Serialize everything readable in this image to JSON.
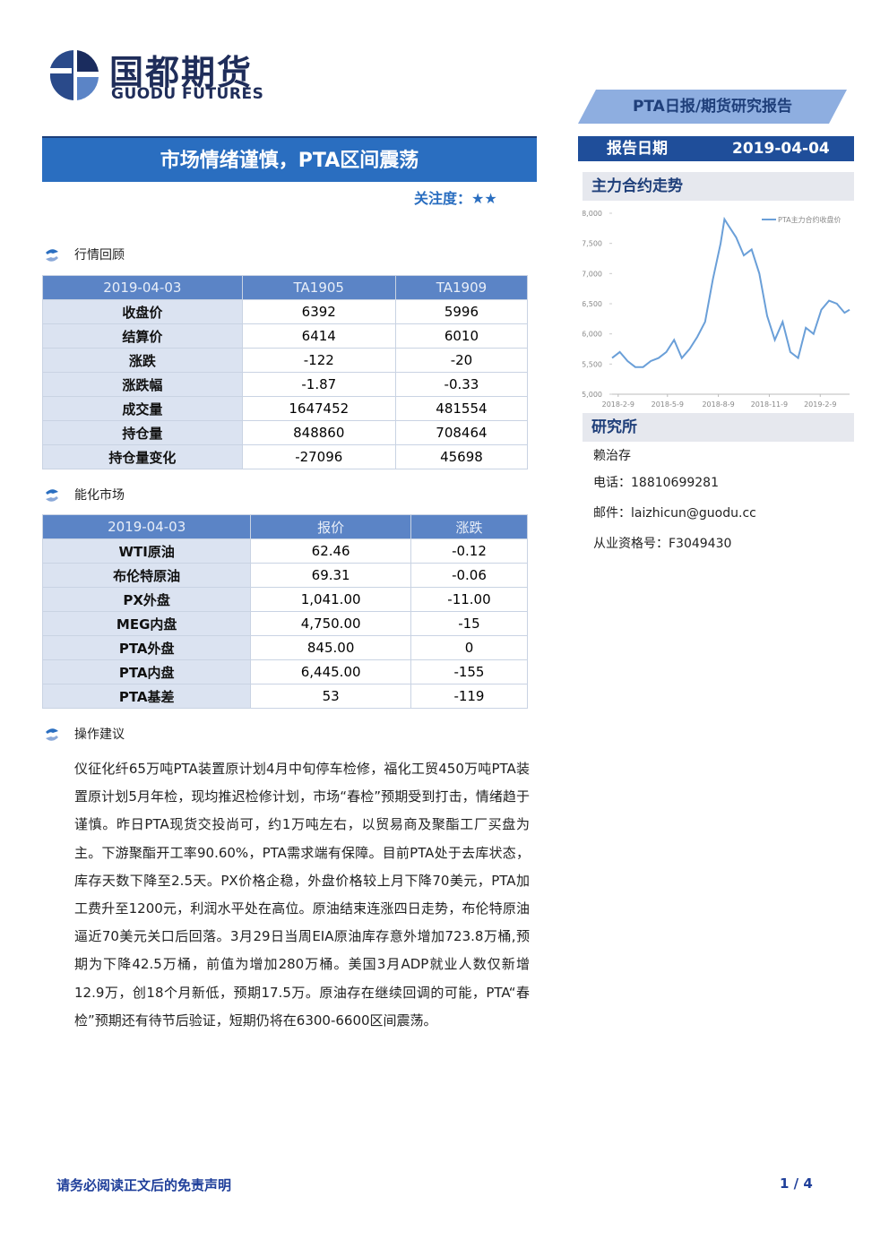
{
  "header": {
    "logo_cn": "国都期货",
    "logo_en": "GUODU FUTURES",
    "report_type": "PTA日报/期货研究报告",
    "date_label": "报告日期",
    "date": "2019-04-04"
  },
  "title": "市场情绪谨慎，PTA区间震荡",
  "attention": {
    "label": "关注度：",
    "stars": "★★"
  },
  "sections": [
    {
      "heading": "行情回顾",
      "table": {
        "header": [
          "2019-04-03",
          "TA1905",
          "TA1909"
        ],
        "rows": [
          [
            "收盘价",
            "6392",
            "5996"
          ],
          [
            "结算价",
            "6414",
            "6010"
          ],
          [
            "涨跌",
            "-122",
            "-20"
          ],
          [
            "涨跌幅",
            "-1.87",
            "-0.33"
          ],
          [
            "成交量",
            "1647452",
            "481554"
          ],
          [
            "持仓量",
            "848860",
            "708464"
          ],
          [
            "持仓量变化",
            "-27096",
            "45698"
          ]
        ]
      }
    },
    {
      "heading": "能化市场",
      "table": {
        "header": [
          "2019-04-03",
          "报价",
          "涨跌"
        ],
        "rows": [
          [
            "WTI原油",
            "62.46",
            "-0.12"
          ],
          [
            "布伦特原油",
            "69.31",
            "-0.06"
          ],
          [
            "PX外盘",
            "1,041.00",
            "-11.00"
          ],
          [
            "MEG内盘",
            "4,750.00",
            "-15"
          ],
          [
            "PTA外盘",
            "845.00",
            "0"
          ],
          [
            "PTA内盘",
            "6,445.00",
            "-155"
          ],
          [
            "PTA基差",
            "53",
            "-119"
          ]
        ]
      }
    },
    {
      "heading": "操作建议",
      "paragraph": "仪征化纤65万吨PTA装置原计划4月中旬停车检修，福化工贸450万吨PTA装置原计划5月年检，现均推迟检修计划，市场“春检”预期受到打击，情绪趋于谨慎。昨日PTA现货交投尚可，约1万吨左右，以贸易商及聚酯工厂买盘为主。下游聚酯开工率90.60%，PTA需求端有保障。目前PTA处于去库状态，库存天数下降至2.5天。PX价格企稳，外盘价格较上月下降70美元，PTA加工费升至1200元，利润水平处在高位。原油结束连涨四日走势，布伦特原油逼近70美元关口后回落。3月29日当周EIA原油库存意外增加723.8万桶,预期为下降42.5万桶，前值为增加280万桶。美国3月ADP就业人数仅新增12.9万，创18个月新低，预期17.5万。原油存在继续回调的可能，PTA“春检”预期还有待节后验证，短期仍将在6300-6600区间震荡。"
    }
  ],
  "chart_heading": "主力合约走势",
  "chart_data": {
    "type": "line",
    "x": [
      "2018-1-29",
      "2018-2-12",
      "2018-2-26",
      "2018-3-12",
      "2018-3-26",
      "2018-4-9",
      "2018-4-23",
      "2018-5-7",
      "2018-5-21",
      "2018-6-4",
      "2018-6-18",
      "2018-7-2",
      "2018-7-16",
      "2018-7-30",
      "2018-8-13",
      "2018-8-20",
      "2018-8-27",
      "2018-9-10",
      "2018-9-24",
      "2018-10-8",
      "2018-10-22",
      "2018-11-5",
      "2018-11-19",
      "2018-12-3",
      "2018-12-17",
      "2018-12-31",
      "2019-1-14",
      "2019-1-28",
      "2019-2-11",
      "2019-2-25",
      "2019-3-11",
      "2019-3-25",
      "2019-4-3"
    ],
    "series": [
      {
        "name": "PTA主力合约收盘价",
        "color": "#6a9fd8",
        "values": [
          5600,
          5700,
          5550,
          5450,
          5450,
          5550,
          5600,
          5700,
          5900,
          5600,
          5750,
          5950,
          6200,
          6900,
          7500,
          7900,
          7800,
          7600,
          7300,
          7400,
          7000,
          6300,
          5900,
          6200,
          5700,
          5600,
          6100,
          6000,
          6400,
          6550,
          6500,
          6350,
          6400
        ]
      }
    ],
    "xlim": [
      "2018-1-29",
      "2019-4-3"
    ],
    "xticks": [
      "2018-2-9",
      "2018-5-9",
      "2018-8-9",
      "2018-11-9",
      "2019-2-9"
    ],
    "ylim": [
      5000,
      8000
    ],
    "yticks": [
      {
        "value": 5000,
        "label": "5,000"
      },
      {
        "value": 5500,
        "label": "5,500"
      },
      {
        "value": 6000,
        "label": "6,000"
      },
      {
        "value": 6500,
        "label": "6,500"
      },
      {
        "value": 7000,
        "label": "7,000"
      },
      {
        "value": 7500,
        "label": "7,500"
      },
      {
        "value": 8000,
        "label": "8,000"
      }
    ],
    "legend": "upper right"
  },
  "research": {
    "heading": "研究所",
    "name": "赖治存",
    "phone": "电话：18810699281",
    "email": "邮件：laizhicun@guodu.cc",
    "license": "从业资格号：F3049430"
  },
  "footer": {
    "disclaimer": "请务必阅读正文后的免责声明",
    "page": "1 / 4"
  }
}
